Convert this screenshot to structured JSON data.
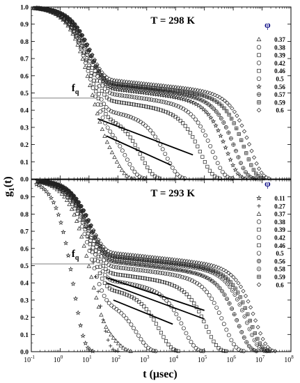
{
  "chart_data": [
    {
      "type": "scatter",
      "title": "T = 298 K",
      "ylabel": "g1(t)",
      "y_tick_labels": [
        "0.0",
        "0.1",
        "0.2",
        "0.3",
        "0.4",
        "0.5",
        "0.6",
        "0.7",
        "0.8",
        "0.9",
        "1.0"
      ],
      "fq_label": "fq",
      "fq_value": 0.47,
      "legend_title": "φ",
      "legend_placement": "right",
      "xlim": [
        0.1,
        100000000
      ],
      "ylim": [
        0,
        1
      ],
      "xscale": "log",
      "series": [
        {
          "name": "0.37",
          "marker": "triangle",
          "plateau": 0.34,
          "tr": 80,
          "slope": 0.03
        },
        {
          "name": "0.38",
          "marker": "circle",
          "plateau": 0.35,
          "tr": 200,
          "slope": 0.028
        },
        {
          "name": "0.39",
          "marker": "square",
          "plateau": 0.37,
          "tr": 700,
          "slope": 0.028
        },
        {
          "name": "0.42",
          "marker": "circle",
          "plateau": 0.4,
          "tr": 5000,
          "slope": 0.026
        },
        {
          "name": "0.46",
          "marker": "square",
          "plateau": 0.46,
          "tr": 80000,
          "slope": 0.024
        },
        {
          "name": "0.5",
          "marker": "circle",
          "plateau": 0.5,
          "tr": 200000,
          "slope": 0.022
        },
        {
          "name": "0.56",
          "marker": "star",
          "plateau": 0.53,
          "tr": 600000,
          "slope": 0.02
        },
        {
          "name": "0.57",
          "marker": "circle-plus",
          "plateau": 0.55,
          "tr": 1200000,
          "slope": 0.02
        },
        {
          "name": "0.59",
          "marker": "square-cross",
          "plateau": 0.56,
          "tr": 2500000,
          "slope": 0.018
        },
        {
          "name": "0.6",
          "marker": "diamond",
          "plateau": 0.58,
          "tr": 4000000,
          "slope": 0.018
        }
      ],
      "fit_lines": [
        {
          "x": [
            20,
            40000
          ],
          "y": [
            0.35,
            0.14
          ]
        },
        {
          "x": [
            40,
            7000
          ],
          "y": [
            0.25,
            0.08
          ]
        }
      ]
    },
    {
      "type": "scatter",
      "title": "T = 293 K",
      "ylabel": "g1(t)",
      "y_tick_labels": [
        "0.0",
        "0.1",
        "0.2",
        "0.3",
        "0.4",
        "0.5",
        "0.6",
        "0.7",
        "0.8",
        "0.9"
      ],
      "fq_label": "fq",
      "fq_value": 0.51,
      "legend_title": "φ",
      "legend_placement": "right",
      "xlabel": "t (μsec)",
      "x_tick_labels": [
        "10",
        "10",
        "10",
        "10",
        "10",
        "10",
        "10",
        "10",
        "10",
        "10"
      ],
      "x_tick_exponents": [
        "-1",
        "0",
        "1",
        "2",
        "3",
        "4",
        "5",
        "6",
        "7",
        "8"
      ],
      "xlim": [
        0.1,
        100000000
      ],
      "ylim": [
        0,
        1
      ],
      "xscale": "log",
      "series": [
        {
          "name": "0.11",
          "marker": "star",
          "plateau": 0.0,
          "tr": 3,
          "slope": 0.0
        },
        {
          "name": "0.27",
          "marker": "plus",
          "plateau": 0.0,
          "tr": 20,
          "slope": 0.0
        },
        {
          "name": "0.37",
          "marker": "triangle",
          "plateau": 0.2,
          "tr": 80,
          "slope": 0.03
        },
        {
          "name": "0.38",
          "marker": "circle",
          "plateau": 0.3,
          "tr": 500,
          "slope": 0.028
        },
        {
          "name": "0.39",
          "marker": "square",
          "plateau": 0.37,
          "tr": 3000,
          "slope": 0.026
        },
        {
          "name": "0.42",
          "marker": "circle",
          "plateau": 0.42,
          "tr": 20000,
          "slope": 0.024
        },
        {
          "name": "0.46",
          "marker": "square",
          "plateau": 0.46,
          "tr": 120000,
          "slope": 0.022
        },
        {
          "name": "0.5",
          "marker": "circle",
          "plateau": 0.5,
          "tr": 500000,
          "slope": 0.02
        },
        {
          "name": "0.56",
          "marker": "circle-plus",
          "plateau": 0.53,
          "tr": 1500000,
          "slope": 0.02
        },
        {
          "name": "0.58",
          "marker": "circle-dot",
          "plateau": 0.55,
          "tr": 3000000,
          "slope": 0.018
        },
        {
          "name": "0.59",
          "marker": "square-cross",
          "plateau": 0.56,
          "tr": 4000000,
          "slope": 0.018
        },
        {
          "name": "0.6",
          "marker": "diamond",
          "plateau": 0.58,
          "tr": 6000000,
          "slope": 0.018
        }
      ],
      "fit_lines": [
        {
          "x": [
            40,
            100000
          ],
          "y": [
            0.43,
            0.24
          ]
        },
        {
          "x": [
            40,
            100000
          ],
          "y": [
            0.4,
            0.19
          ]
        },
        {
          "x": [
            70,
            8000
          ],
          "y": [
            0.3,
            0.16
          ]
        }
      ]
    }
  ]
}
